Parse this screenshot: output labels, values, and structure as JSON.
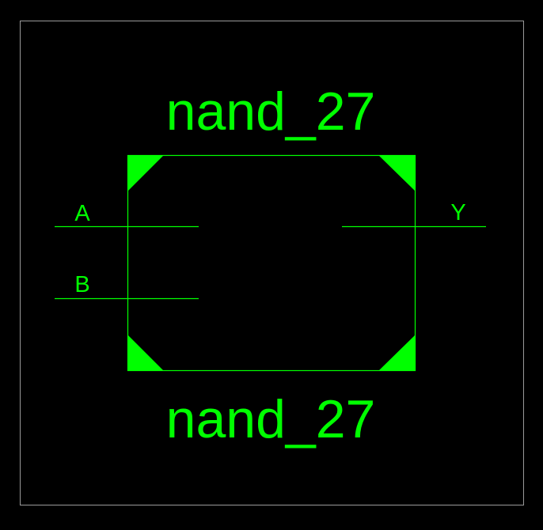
{
  "cell": {
    "name_top": "nand_27",
    "name_bottom": "nand_27"
  },
  "pins": {
    "input_a": "A",
    "input_b": "B",
    "output_y": "Y"
  },
  "colors": {
    "background": "#000000",
    "symbol": "#00ff00",
    "frame": "#9a9a9a"
  }
}
